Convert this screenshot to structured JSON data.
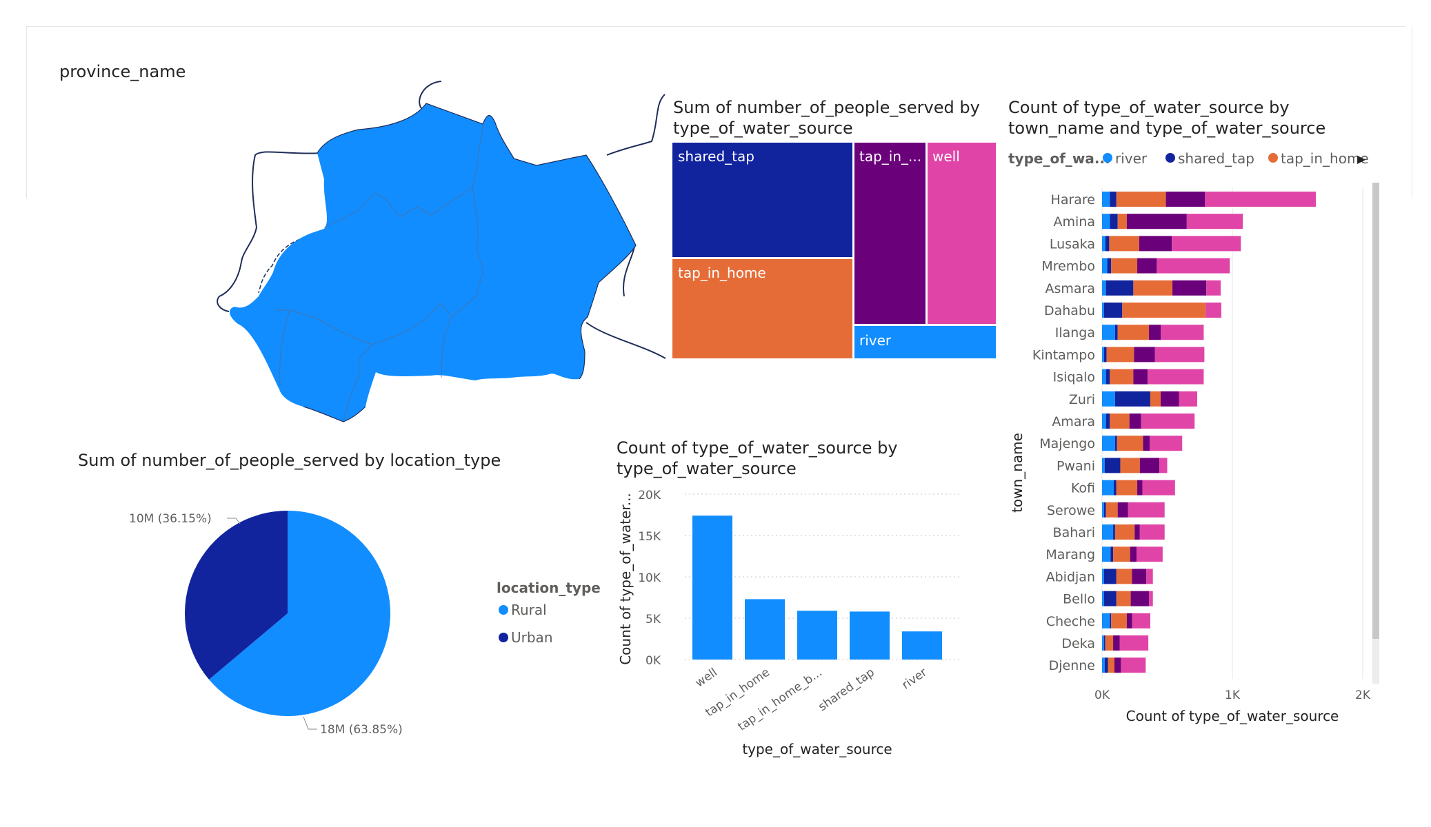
{
  "map": {
    "title": "province_name",
    "fill_color": "#118DFF",
    "outline_color": "#1F2D5A"
  },
  "treemap": {
    "title_line1": "Sum of number_of_people_served by",
    "title_line2": "type_of_water_source",
    "tiles": [
      {
        "label": "shared_tap",
        "color": "#12239E"
      },
      {
        "label": "tap_in_home",
        "color": "#E66C37"
      },
      {
        "label": "tap_in_...",
        "color": "#6B007B"
      },
      {
        "label": "well",
        "color": "#E044A7"
      },
      {
        "label": "river",
        "color": "#118DFF"
      }
    ]
  },
  "stacked": {
    "title_line1": "Count of type_of_water_source by",
    "title_line2": "town_name and type_of_water_source",
    "legend_title": "type_of_wa...",
    "legend_items": [
      {
        "label": "river",
        "color": "#118DFF"
      },
      {
        "label": "shared_tap",
        "color": "#12239E"
      },
      {
        "label": "tap_in_home",
        "color": "#E66C37"
      }
    ],
    "more_arrow": "▶",
    "y_axis_label": "town_name",
    "x_axis_label": "Count of type_of_water_source",
    "x_ticks": [
      "0K",
      "1K",
      "2K"
    ]
  },
  "pie": {
    "title": "Sum of number_of_people_served by location_type",
    "legend_title": "location_type",
    "legend_items": [
      {
        "label": "Rural",
        "color": "#118DFF"
      },
      {
        "label": "Urban",
        "color": "#12239E"
      }
    ],
    "label_urban": "10M (36.15%)",
    "label_rural": "18M (63.85%)"
  },
  "bar": {
    "title_line1": "Count of type_of_water_source by",
    "title_line2": "type_of_water_source",
    "y_axis_label": "Count of type_of_water...",
    "x_axis_label": "type_of_water_source",
    "y_ticks": [
      "0K",
      "5K",
      "10K",
      "15K",
      "20K"
    ],
    "x_tick_labels": [
      "well",
      "tap_in_home",
      "tap_in_home_b...",
      "shared_tap",
      "river"
    ],
    "bar_color": "#118DFF"
  },
  "chart_data": [
    {
      "type": "treemap",
      "title": "Sum of number_of_people_served by type_of_water_source",
      "categories": [
        "shared_tap",
        "tap_in_home",
        "tap_in_home_broken",
        "well",
        "river"
      ],
      "values": [
        11.9,
        7.0,
        5.9,
        4.8,
        2.4
      ]
    },
    {
      "type": "bar",
      "orientation": "horizontal-stacked",
      "title": "Count of type_of_water_source by town_name and type_of_water_source",
      "categories": [
        "Harare",
        "Amina",
        "Lusaka",
        "Mrembo",
        "Asmara",
        "Dahabu",
        "Ilanga",
        "Kintampo",
        "Isiqalo",
        "Zuri",
        "Amara",
        "Majengo",
        "Pwani",
        "Kofi",
        "Serowe",
        "Bahari",
        "Marang",
        "Abidjan",
        "Bello",
        "Cheche",
        "Deka",
        "Djenne"
      ],
      "series": [
        {
          "name": "river",
          "color": "#118DFF",
          "values": [
            60,
            60,
            25,
            40,
            30,
            15,
            100,
            15,
            30,
            100,
            30,
            100,
            20,
            90,
            15,
            85,
            65,
            15,
            15,
            60,
            15,
            20
          ]
        },
        {
          "name": "shared_tap",
          "color": "#12239E",
          "values": [
            50,
            60,
            30,
            30,
            210,
            140,
            20,
            20,
            30,
            270,
            30,
            15,
            120,
            20,
            15,
            15,
            20,
            95,
            95,
            10,
            10,
            25
          ]
        },
        {
          "name": "tap_in_home",
          "color": "#E66C37",
          "values": [
            380,
            70,
            230,
            200,
            300,
            640,
            240,
            210,
            180,
            80,
            150,
            200,
            150,
            160,
            90,
            150,
            130,
            120,
            110,
            120,
            60,
            50
          ]
        },
        {
          "name": "tap_in_home_broken",
          "color": "#6B007B",
          "values": [
            300,
            460,
            250,
            150,
            260,
            0,
            90,
            160,
            110,
            140,
            90,
            50,
            150,
            40,
            80,
            40,
            50,
            110,
            140,
            40,
            50,
            50
          ]
        },
        {
          "name": "well",
          "color": "#E044A7",
          "values": [
            850,
            430,
            530,
            560,
            110,
            120,
            330,
            380,
            430,
            140,
            410,
            250,
            60,
            250,
            280,
            190,
            200,
            50,
            30,
            140,
            220,
            190
          ]
        }
      ],
      "xlabel": "Count of type_of_water_source",
      "ylabel": "town_name",
      "xlim": [
        0,
        2000
      ]
    },
    {
      "type": "pie",
      "title": "Sum of number_of_people_served by location_type",
      "categories": [
        "Rural",
        "Urban"
      ],
      "values": [
        63.85,
        36.15
      ],
      "labels": [
        "18M (63.85%)",
        "10M (36.15%)"
      ]
    },
    {
      "type": "bar",
      "title": "Count of type_of_water_source by type_of_water_source",
      "categories": [
        "well",
        "tap_in_home",
        "tap_in_home_broken",
        "shared_tap",
        "river"
      ],
      "values": [
        17400,
        7300,
        5900,
        5800,
        3400
      ],
      "xlabel": "type_of_water_source",
      "ylabel": "Count of type_of_water_source",
      "ylim": [
        0,
        20000
      ]
    }
  ]
}
